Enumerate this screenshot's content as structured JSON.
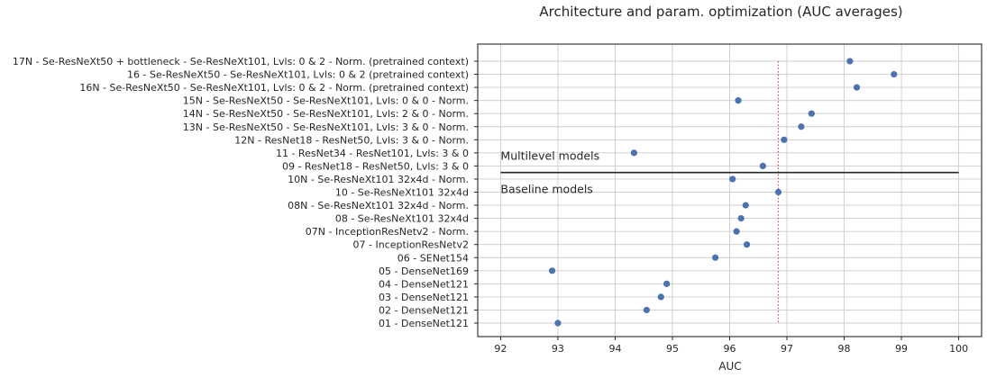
{
  "chart_data": {
    "type": "scatter",
    "title": "Architecture and param. optimization (AUC averages)",
    "xlabel": "AUC",
    "ylabel": "",
    "xlim": [
      91.6,
      100.4
    ],
    "xticks": [
      92,
      93,
      94,
      95,
      96,
      97,
      98,
      99,
      100
    ],
    "grid": true,
    "marker_color": "#4c72b0",
    "reference_line": {
      "x": 96.85,
      "color": "#c44e52",
      "style": "dotted"
    },
    "separator": {
      "x_start": 92,
      "x_end": 100,
      "between": [
        "10N - Se-ResNeXt101 32x4d - Norm.",
        "09 - ResNet18 - ResNet50, Lvls: 3 & 0"
      ]
    },
    "annotations": [
      {
        "text": "Multilevel models",
        "x": 92,
        "position": "above-separator"
      },
      {
        "text": "Baseline models",
        "x": 92,
        "position": "below-separator"
      }
    ],
    "categories": [
      "17N - Se-ResNeXt50 + bottleneck - Se-ResNeXt101, Lvls: 0 & 2  - Norm. (pretrained context)",
      "16 - Se-ResNeXt50 - Se-ResNeXt101, Lvls: 0 & 2  (pretrained context)",
      "16N - Se-ResNeXt50 - Se-ResNeXt101, Lvls: 0 & 2  - Norm. (pretrained context)",
      "15N - Se-ResNeXt50 - Se-ResNeXt101, Lvls: 0 & 0  - Norm.",
      "14N - Se-ResNeXt50 - Se-ResNeXt101, Lvls: 2 & 0  - Norm.",
      "13N - Se-ResNeXt50 - Se-ResNeXt101, Lvls: 3 & 0  - Norm.",
      "12N - ResNet18 - ResNet50, Lvls: 3 & 0  - Norm.",
      "11 - ResNet34 - ResNet101, Lvls: 3 & 0",
      "09 - ResNet18 - ResNet50, Lvls: 3 & 0",
      "10N - Se-ResNeXt101 32x4d - Norm.",
      "10 - Se-ResNeXt101 32x4d",
      "08N - Se-ResNeXt101 32x4d - Norm.",
      "08 - Se-ResNeXt101 32x4d",
      "07N - InceptionResNetv2 - Norm.",
      "07 - InceptionResNetv2",
      "06 - SENet154",
      "05 - DenseNet169",
      "04 - DenseNet121",
      "03 - DenseNet121",
      "02 - DenseNet121",
      "01 - DenseNet121"
    ],
    "values": [
      98.1,
      98.87,
      98.22,
      96.15,
      97.43,
      97.25,
      96.95,
      94.33,
      96.58,
      96.05,
      96.85,
      96.28,
      96.2,
      96.12,
      96.3,
      95.75,
      92.9,
      94.9,
      94.8,
      94.55,
      93.0
    ]
  }
}
